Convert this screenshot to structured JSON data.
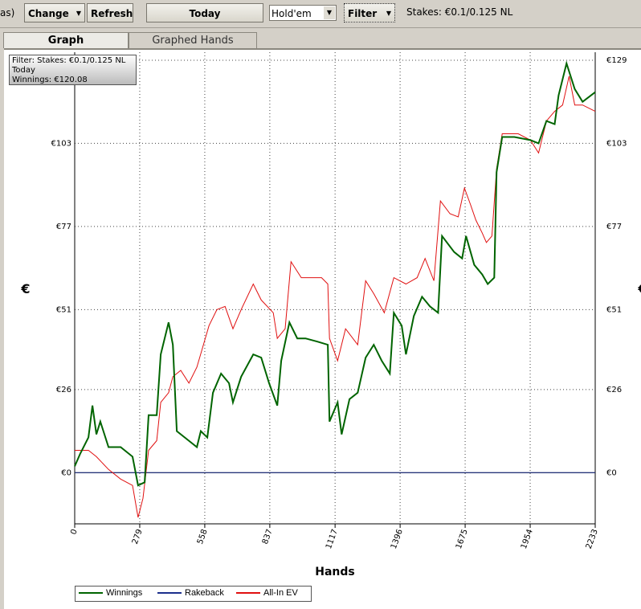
{
  "toolbar": {
    "cut_label": "as)",
    "change": "Change",
    "refresh": "Refresh",
    "today": "Today",
    "game": "Hold'em",
    "filter": "Filter",
    "stakes": "Stakes: €0.1/0.125 NL"
  },
  "tabs": [
    "Graph",
    "Graphed Hands"
  ],
  "info": [
    "Filter: Stakes: €0.1/0.125 NL",
    "Today",
    "Winnings: €120.08"
  ],
  "chart_data": {
    "type": "line",
    "x_label": "Hands",
    "y_label": "€",
    "xlim": [
      0,
      2233
    ],
    "xticks": [
      0,
      279,
      558,
      837,
      1117,
      1396,
      1675,
      1954,
      2233
    ],
    "ylim": [
      -16,
      131.5
    ],
    "yticks": [
      {
        "value": 0,
        "label": "€0"
      },
      {
        "value": 26,
        "label": "€26"
      },
      {
        "value": 51,
        "label": "€51"
      },
      {
        "value": 77,
        "label": "€77"
      },
      {
        "value": 103,
        "label": "€103"
      },
      {
        "value": 129,
        "label": "€129"
      }
    ],
    "grid": true,
    "series": [
      {
        "name": "Winnings",
        "color": "#006400",
        "x": [
          0,
          24,
          59,
          76,
          93,
          110,
          145,
          197,
          248,
          272,
          300,
          317,
          352,
          369,
          403,
          421,
          438,
          472,
          524,
          541,
          569,
          593,
          628,
          662,
          679,
          714,
          766,
          800,
          834,
          869,
          886,
          921,
          955,
          990,
          1041,
          1086,
          1093,
          1128,
          1145,
          1179,
          1214,
          1248,
          1283,
          1317,
          1352,
          1369,
          1403,
          1421,
          1455,
          1490,
          1524,
          1559,
          1576,
          1628,
          1662,
          1679,
          1714,
          1748,
          1772,
          1800,
          1810,
          1834,
          1886,
          1955,
          1990,
          2024,
          2059,
          2076,
          2110,
          2145,
          2179,
          2233
        ],
        "values": [
          2,
          6,
          11,
          21,
          12,
          16,
          8,
          8,
          5,
          -4,
          -3,
          18,
          18,
          37,
          47,
          40,
          13,
          11,
          8,
          13,
          11,
          25,
          31,
          28,
          22,
          30,
          37,
          36,
          28,
          21,
          35,
          47,
          42,
          42,
          41,
          40,
          16,
          22,
          12,
          23,
          25,
          36,
          40,
          35,
          31,
          50,
          46,
          37,
          49,
          55,
          52,
          50,
          74,
          69,
          67,
          74,
          65,
          62,
          59,
          61,
          94,
          105,
          105,
          104,
          103,
          110,
          109,
          118,
          128,
          120,
          116,
          119
        ]
      },
      {
        "name": "Rakeback",
        "color": "#1c2f8c",
        "x": [
          0,
          2233
        ],
        "values": [
          0,
          0
        ]
      },
      {
        "name": "All-In EV",
        "color": "#e01010",
        "x": [
          0,
          59,
          93,
          145,
          197,
          248,
          272,
          293,
          317,
          352,
          369,
          403,
          421,
          455,
          490,
          524,
          576,
          610,
          645,
          679,
          714,
          766,
          800,
          852,
          869,
          903,
          928,
          972,
          1024,
          1059,
          1086,
          1093,
          1128,
          1162,
          1214,
          1248,
          1283,
          1328,
          1369,
          1421,
          1469,
          1503,
          1541,
          1569,
          1610,
          1645,
          1672,
          1697,
          1721,
          1748,
          1766,
          1790,
          1810,
          1834,
          1903,
          1955,
          1990,
          2024,
          2059,
          2093,
          2121,
          2145,
          2179,
          2233
        ],
        "values": [
          7,
          7,
          5,
          1,
          -2,
          -4,
          -14,
          -8,
          7,
          10,
          22,
          25,
          30,
          32,
          28,
          33,
          46,
          51,
          52,
          45,
          51,
          59,
          54,
          50,
          42,
          45,
          66,
          61,
          61,
          61,
          59,
          42,
          35,
          45,
          40,
          60,
          56,
          50,
          61,
          59,
          61,
          67,
          60,
          85,
          81,
          80,
          89,
          84,
          79,
          75,
          72,
          74,
          95,
          106,
          106,
          104,
          100,
          110,
          113,
          115,
          124,
          115,
          115,
          113
        ]
      }
    ]
  }
}
